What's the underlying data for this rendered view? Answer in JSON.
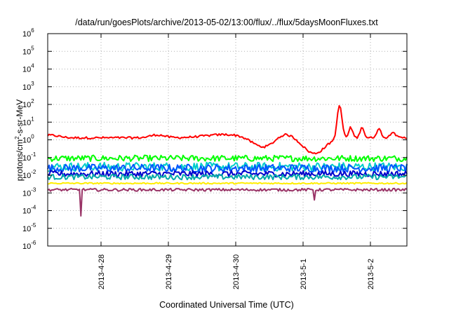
{
  "chart_data": {
    "type": "line",
    "title": "/data/run/goesPlots/archive/2013-05-02/13:00/flux/../flux/5daysMoonFluxes.txt",
    "xlabel": "Coordinated Universal Time (UTC)",
    "ylabel": {
      "prefix": "protons/cm",
      "sup": "2",
      "suffix": "-s-sr-MeV"
    },
    "y_scale": "log",
    "ylim": [
      1e-06,
      1000000.0
    ],
    "y_ticks": [
      {
        "exp": "-6"
      },
      {
        "exp": "-5"
      },
      {
        "exp": "-4"
      },
      {
        "exp": "-3"
      },
      {
        "exp": "-2"
      },
      {
        "exp": "-1"
      },
      {
        "exp": "0"
      },
      {
        "exp": "1"
      },
      {
        "exp": "2"
      },
      {
        "exp": "3"
      },
      {
        "exp": "4"
      },
      {
        "exp": "5"
      },
      {
        "exp": "6"
      }
    ],
    "xlim": [
      "2013-04-27T05:00",
      "2013-05-02T13:00"
    ],
    "x_ticks": [
      "2013-4-28",
      "2013-4-29",
      "2013-4-30",
      "2013-5-1",
      "2013-5-2"
    ],
    "grid": true,
    "series": [
      {
        "color": "#ff0000",
        "base": 1.3,
        "noise": 0.12,
        "bumps": [
          {
            "t": "2013-04-27T06:00",
            "w": 0.18,
            "v": 1.8
          },
          {
            "t": "2013-04-28T20:00",
            "w": 0.15,
            "v": 1.9
          },
          {
            "t": "2013-04-29T21:00",
            "w": 0.45,
            "v": 2.0
          },
          {
            "t": "2013-04-30T10:00",
            "w": 0.25,
            "v": 0.35
          },
          {
            "t": "2013-04-30T17:00",
            "w": 0.18,
            "v": 2.6
          },
          {
            "t": "2013-05-01T04:00",
            "w": 0.22,
            "v": 0.17
          },
          {
            "t": "2013-05-01T13:00",
            "w": 0.05,
            "v": 100
          },
          {
            "t": "2013-05-01T17:00",
            "w": 0.04,
            "v": 5
          },
          {
            "t": "2013-05-01T21:00",
            "w": 0.04,
            "v": 5.5
          },
          {
            "t": "2013-05-02T03:00",
            "w": 0.05,
            "v": 4
          },
          {
            "t": "2013-05-02T08:00",
            "w": 0.05,
            "v": 3
          }
        ]
      },
      {
        "color": "#00ff00",
        "base": 0.09,
        "noise": 0.35
      },
      {
        "color": "#00cccc",
        "base": 0.03,
        "noise": 0.5
      },
      {
        "color": "#0055ff",
        "base": 0.025,
        "noise": 0.45
      },
      {
        "color": "#0000cc",
        "base": 0.012,
        "noise": 0.35
      },
      {
        "color": "#00aaaa",
        "base": 0.008,
        "noise": 0.3
      },
      {
        "color": "#ffee00",
        "base": 0.0035,
        "noise": 0.08
      },
      {
        "color": "#993366",
        "base": 0.0015,
        "noise": 0.15,
        "dips": [
          {
            "t": "2013-04-27T17:00",
            "v": 5e-05
          },
          {
            "t": "2013-05-01T04:00",
            "v": 0.0004
          }
        ]
      }
    ]
  }
}
